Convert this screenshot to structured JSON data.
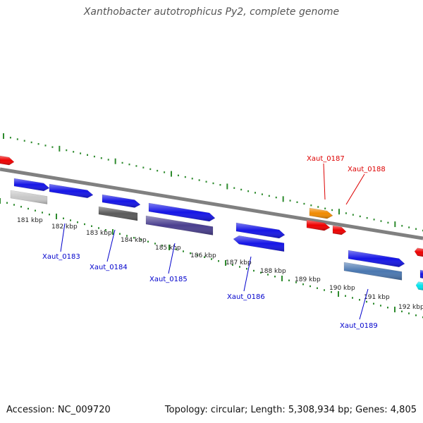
{
  "title": "Xanthobacter autotrophicus Py2, complete genome",
  "accession": "Accession: NC_009720",
  "topology": "Topology: circular; Length: 5,308,934 bp; Genes: 4,805",
  "colors": {
    "backbone": "#808080",
    "tick": "#2e8b2e",
    "blue_gene": "#1515e6",
    "red_gene": "#ee0000",
    "orange_gene": "#f08a00",
    "gray_gene": "#5a5a5a",
    "lightgray_gene": "#c8c8c8",
    "purple_gene": "#4a3f8f",
    "steel_gene": "#4a77b0",
    "cyan_gene": "#00e5ee",
    "label_blue": "#0000cc",
    "label_red": "#dd0000"
  },
  "kbp_labels": [
    "181 kbp",
    "182 kbp",
    "183 kbp",
    "184 kbp",
    "185 kbp",
    "186 kbp",
    "187 kbp",
    "188 kbp",
    "189 kbp",
    "190 kbp",
    "191 kbp",
    "192 kbp"
  ],
  "gene_labels": [
    {
      "id": "Xaut_0183",
      "color": "label_blue"
    },
    {
      "id": "Xaut_0184",
      "color": "label_blue"
    },
    {
      "id": "Xaut_0185",
      "color": "label_blue"
    },
    {
      "id": "Xaut_0186",
      "color": "label_blue"
    },
    {
      "id": "Xaut_0187",
      "color": "label_red"
    },
    {
      "id": "Xaut_0188",
      "color": "label_red"
    },
    {
      "id": "Xaut_0189",
      "color": "label_blue"
    }
  ]
}
